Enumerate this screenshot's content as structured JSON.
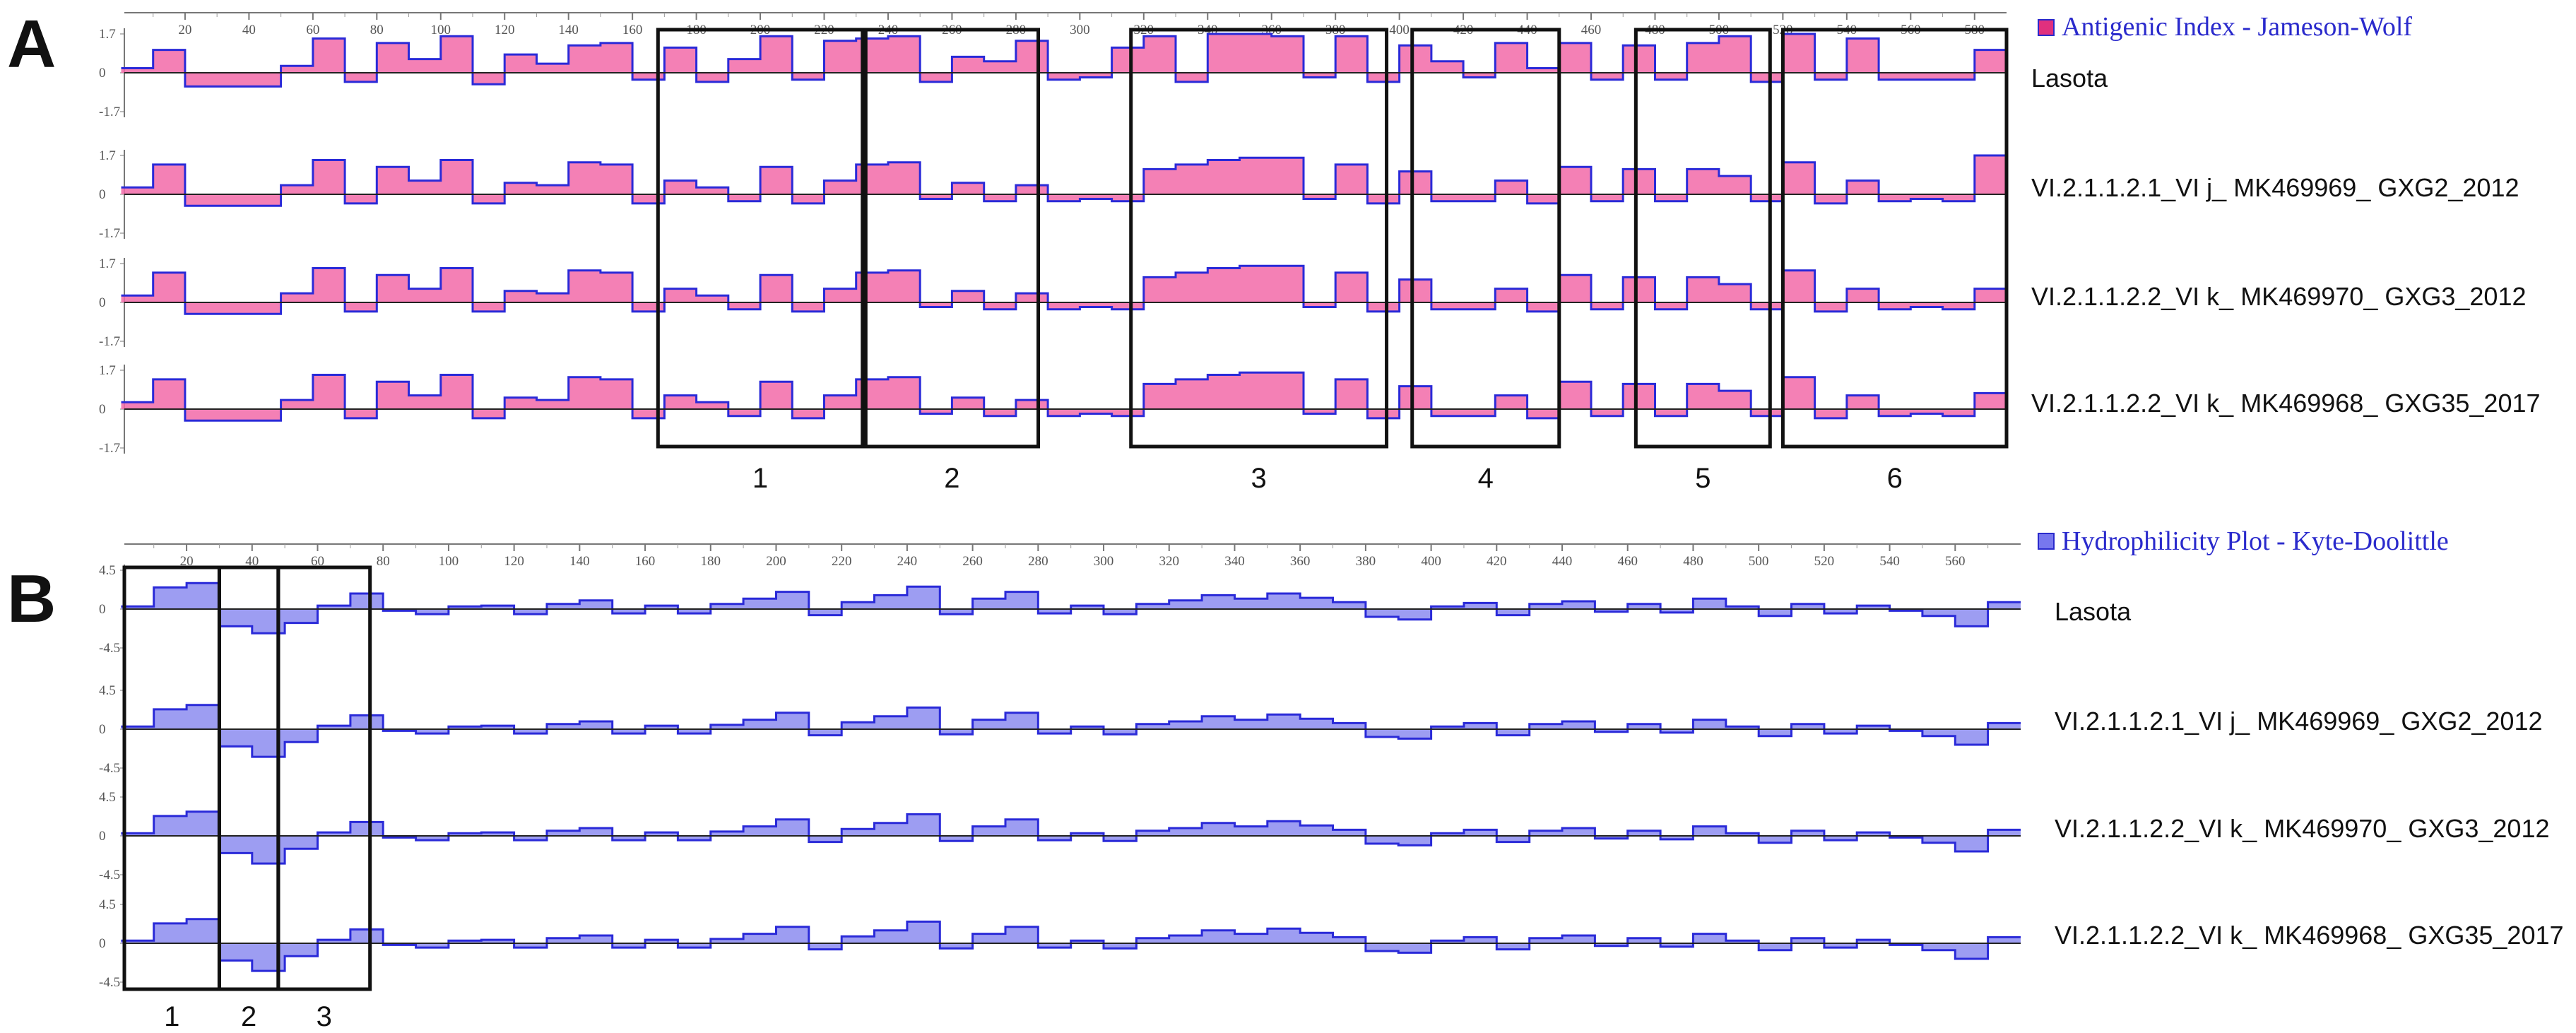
{
  "figure": {
    "panels": [
      {
        "letter": "A",
        "legend": "Antigenic Index - Jameson-Wolf",
        "color": "#e0307e",
        "fill": "#f26aa8",
        "edge": "#2a2ad8",
        "yticks": [
          "1.7",
          "0",
          "-1.7"
        ],
        "box_labels": [
          "1",
          "2",
          "3",
          "4",
          "5",
          "6"
        ]
      },
      {
        "letter": "B",
        "legend": "Hydrophilicity Plot - Kyte-Doolittle",
        "color": "#5a5ae0",
        "fill": "#8c8cf0",
        "edge": "#2a2ad8",
        "yticks": [
          "4.5",
          "0",
          "-4.5"
        ],
        "box_labels": [
          "1",
          "2",
          "3"
        ]
      }
    ],
    "sequences": [
      "Lasota",
      "VI.2.1.1.2.1_VI j_ MK469969_ GXG2_2012",
      "VI.2.1.1.2.2_VI k_ MK469970_ GXG3_2012",
      "VI.2.1.1.2.2_VI k_ MK469968_ GXG35_2017"
    ],
    "xticks": [
      "20",
      "40",
      "60",
      "80",
      "100",
      "120",
      "140",
      "160",
      "180",
      "200",
      "220",
      "240",
      "260",
      "280",
      "300",
      "320",
      "340",
      "360",
      "380",
      "400",
      "420",
      "440",
      "460",
      "480",
      "500",
      "520",
      "540",
      "560"
    ]
  },
  "chart_data": [
    {
      "type": "area",
      "title": "Antigenic Index - Jameson-Wolf",
      "x_range": [
        1,
        590
      ],
      "ylim": [
        -1.7,
        1.7
      ],
      "xticks": [
        20,
        40,
        60,
        80,
        100,
        120,
        140,
        160,
        180,
        200,
        220,
        240,
        260,
        280,
        300,
        320,
        340,
        360,
        380,
        400,
        420,
        440,
        460,
        480,
        500,
        520,
        540,
        560,
        580
      ],
      "x": [
        5,
        15,
        25,
        35,
        45,
        55,
        65,
        75,
        85,
        95,
        105,
        115,
        125,
        135,
        145,
        155,
        165,
        175,
        185,
        195,
        205,
        215,
        225,
        235,
        245,
        255,
        265,
        275,
        285,
        295,
        305,
        315,
        325,
        335,
        345,
        355,
        365,
        375,
        385,
        395,
        405,
        415,
        425,
        435,
        445,
        455,
        465,
        475,
        485,
        495,
        505,
        515,
        525,
        535,
        545,
        555,
        565,
        575,
        585
      ],
      "series": [
        {
          "name": "Lasota",
          "values": [
            0.2,
            1.0,
            -0.6,
            -0.6,
            -0.6,
            0.3,
            1.5,
            -0.4,
            1.3,
            0.6,
            1.6,
            -0.5,
            0.8,
            0.4,
            1.2,
            1.3,
            -0.3,
            1.1,
            -0.4,
            0.6,
            1.6,
            -0.3,
            1.4,
            1.5,
            1.6,
            -0.4,
            0.7,
            0.5,
            1.4,
            -0.3,
            -0.2,
            1.1,
            1.6,
            -0.4,
            1.7,
            1.7,
            1.6,
            -0.2,
            1.6,
            -0.4,
            1.2,
            0.5,
            -0.2,
            1.3,
            0.2,
            1.3,
            -0.3,
            1.2,
            -0.3,
            1.3,
            1.6,
            -0.4,
            1.7,
            -0.3,
            1.5,
            -0.3,
            -0.3,
            -0.3,
            1.0
          ]
        },
        {
          "name": "VI.2.1.1.2.1_VI j_ MK469969_ GXG2_2012",
          "values": [
            0.3,
            1.3,
            -0.5,
            -0.5,
            -0.5,
            0.4,
            1.5,
            -0.4,
            1.2,
            0.6,
            1.5,
            -0.4,
            0.5,
            0.4,
            1.4,
            1.3,
            -0.4,
            0.6,
            0.3,
            -0.3,
            1.2,
            -0.4,
            0.6,
            1.3,
            1.4,
            -0.2,
            0.5,
            -0.3,
            0.4,
            -0.3,
            -0.2,
            -0.3,
            1.1,
            1.3,
            1.5,
            1.6,
            1.6,
            -0.2,
            1.3,
            -0.4,
            1.0,
            -0.3,
            -0.3,
            0.6,
            -0.4,
            1.2,
            -0.3,
            1.1,
            -0.3,
            1.1,
            0.8,
            -0.3,
            1.4,
            -0.4,
            0.6,
            -0.3,
            -0.2,
            -0.3,
            1.7
          ]
        },
        {
          "name": "VI.2.1.1.2.2_VI k_ MK469970_ GXG3_2012",
          "values": [
            0.3,
            1.3,
            -0.5,
            -0.5,
            -0.5,
            0.4,
            1.5,
            -0.4,
            1.2,
            0.6,
            1.5,
            -0.4,
            0.5,
            0.4,
            1.4,
            1.3,
            -0.4,
            0.6,
            0.3,
            -0.3,
            1.2,
            -0.4,
            0.6,
            1.3,
            1.4,
            -0.2,
            0.5,
            -0.3,
            0.4,
            -0.3,
            -0.2,
            -0.3,
            1.1,
            1.3,
            1.5,
            1.6,
            1.6,
            -0.2,
            1.3,
            -0.4,
            1.0,
            -0.3,
            -0.3,
            0.6,
            -0.4,
            1.2,
            -0.3,
            1.1,
            -0.3,
            1.1,
            0.8,
            -0.3,
            1.4,
            -0.4,
            0.6,
            -0.3,
            -0.2,
            -0.3,
            0.6
          ]
        },
        {
          "name": "VI.2.1.1.2.2_VI k_ MK469968_ GXG35_2017",
          "values": [
            0.3,
            1.3,
            -0.5,
            -0.5,
            -0.5,
            0.4,
            1.5,
            -0.4,
            1.2,
            0.6,
            1.5,
            -0.4,
            0.5,
            0.4,
            1.4,
            1.3,
            -0.4,
            0.6,
            0.3,
            -0.3,
            1.2,
            -0.4,
            0.6,
            1.3,
            1.4,
            -0.2,
            0.5,
            -0.3,
            0.4,
            -0.3,
            -0.2,
            -0.3,
            1.1,
            1.3,
            1.5,
            1.6,
            1.6,
            -0.2,
            1.3,
            -0.4,
            1.0,
            -0.3,
            -0.3,
            0.6,
            -0.4,
            1.2,
            -0.3,
            1.1,
            -0.3,
            1.1,
            0.8,
            -0.3,
            1.4,
            -0.4,
            0.6,
            -0.3,
            -0.2,
            -0.3,
            0.7
          ]
        }
      ],
      "boxes": [
        {
          "label": "1",
          "x_range": [
            168,
            232
          ]
        },
        {
          "label": "2",
          "x_range": [
            233,
            287
          ]
        },
        {
          "label": "3",
          "x_range": [
            316,
            396
          ]
        },
        {
          "label": "4",
          "x_range": [
            404,
            450
          ]
        },
        {
          "label": "5",
          "x_range": [
            474,
            516
          ]
        },
        {
          "label": "6",
          "x_range": [
            520,
            590
          ]
        }
      ],
      "legend": "top-right"
    },
    {
      "type": "area",
      "title": "Hydrophilicity Plot - Kyte-Doolittle",
      "x_range": [
        1,
        580
      ],
      "ylim": [
        -4.5,
        4.5
      ],
      "xticks": [
        20,
        40,
        60,
        80,
        100,
        120,
        140,
        160,
        180,
        200,
        220,
        240,
        260,
        280,
        300,
        320,
        340,
        360,
        380,
        400,
        420,
        440,
        460,
        480,
        500,
        520,
        540,
        560
      ],
      "x": [
        5,
        15,
        25,
        35,
        45,
        55,
        65,
        75,
        85,
        95,
        105,
        115,
        125,
        135,
        145,
        155,
        165,
        175,
        185,
        195,
        205,
        215,
        225,
        235,
        245,
        255,
        265,
        275,
        285,
        295,
        305,
        315,
        325,
        335,
        345,
        355,
        365,
        375,
        385,
        395,
        405,
        415,
        425,
        435,
        445,
        455,
        465,
        475,
        485,
        495,
        505,
        515,
        525,
        535,
        545,
        555,
        565,
        575
      ],
      "series": [
        {
          "name": "Lasota",
          "values": [
            0.3,
            2.5,
            3.0,
            -2.0,
            -2.8,
            -1.6,
            0.4,
            1.8,
            -0.2,
            -0.6,
            0.3,
            0.4,
            -0.6,
            0.6,
            1.0,
            -0.5,
            0.4,
            -0.5,
            0.6,
            1.2,
            2.0,
            -0.7,
            0.8,
            1.6,
            2.6,
            -0.6,
            1.2,
            2.0,
            -0.5,
            0.4,
            -0.6,
            0.6,
            1.0,
            1.6,
            1.2,
            1.8,
            1.3,
            0.8,
            -0.9,
            -1.2,
            0.3,
            0.7,
            -0.7,
            0.6,
            0.9,
            -0.3,
            0.6,
            -0.4,
            1.2,
            0.3,
            -0.8,
            0.6,
            -0.5,
            0.4,
            -0.2,
            -0.8,
            -2.0,
            0.8
          ]
        },
        {
          "name": "VI.2.1.1.2.1_VI j_ MK469969_ GXG2_2012",
          "values": [
            0.3,
            2.3,
            2.8,
            -2.0,
            -3.2,
            -1.5,
            0.4,
            1.6,
            -0.2,
            -0.5,
            0.3,
            0.4,
            -0.5,
            0.6,
            0.9,
            -0.5,
            0.4,
            -0.5,
            0.5,
            1.1,
            1.9,
            -0.7,
            0.8,
            1.5,
            2.5,
            -0.6,
            1.1,
            1.9,
            -0.5,
            0.3,
            -0.6,
            0.6,
            0.9,
            1.5,
            1.1,
            1.7,
            1.2,
            0.7,
            -0.9,
            -1.1,
            0.3,
            0.7,
            -0.7,
            0.6,
            0.9,
            -0.3,
            0.6,
            -0.4,
            1.1,
            0.3,
            -0.8,
            0.6,
            -0.5,
            0.4,
            -0.2,
            -0.8,
            -1.8,
            0.7
          ]
        },
        {
          "name": "VI.2.1.1.2.2_VI k_ MK469970_ GXG3_2012",
          "values": [
            0.3,
            2.3,
            2.8,
            -2.0,
            -3.2,
            -1.5,
            0.4,
            1.6,
            -0.2,
            -0.5,
            0.3,
            0.4,
            -0.5,
            0.6,
            0.9,
            -0.5,
            0.4,
            -0.5,
            0.5,
            1.1,
            1.9,
            -0.7,
            0.8,
            1.5,
            2.5,
            -0.6,
            1.1,
            1.9,
            -0.5,
            0.3,
            -0.6,
            0.6,
            0.9,
            1.5,
            1.1,
            1.7,
            1.2,
            0.7,
            -0.9,
            -1.1,
            0.3,
            0.7,
            -0.7,
            0.6,
            0.9,
            -0.3,
            0.6,
            -0.4,
            1.1,
            0.3,
            -0.8,
            0.6,
            -0.5,
            0.4,
            -0.2,
            -0.8,
            -1.8,
            0.7
          ]
        },
        {
          "name": "VI.2.1.1.2.2_VI k_ MK469968_ GXG35_2017",
          "values": [
            0.3,
            2.3,
            2.8,
            -2.0,
            -3.2,
            -1.5,
            0.4,
            1.6,
            -0.2,
            -0.5,
            0.3,
            0.4,
            -0.5,
            0.6,
            0.9,
            -0.5,
            0.4,
            -0.5,
            0.5,
            1.1,
            1.9,
            -0.7,
            0.8,
            1.5,
            2.5,
            -0.6,
            1.1,
            1.9,
            -0.5,
            0.3,
            -0.6,
            0.6,
            0.9,
            1.5,
            1.1,
            1.7,
            1.2,
            0.7,
            -0.9,
            -1.1,
            0.3,
            0.7,
            -0.7,
            0.6,
            0.9,
            -0.3,
            0.6,
            -0.4,
            1.1,
            0.3,
            -0.8,
            0.6,
            -0.5,
            0.4,
            -0.2,
            -0.8,
            -1.8,
            0.7
          ]
        }
      ],
      "boxes": [
        {
          "label": "1",
          "x_range": [
            1,
            30
          ]
        },
        {
          "label": "2",
          "x_range": [
            30,
            48
          ]
        },
        {
          "label": "3",
          "x_range": [
            48,
            76
          ]
        }
      ],
      "legend": "top-right"
    }
  ]
}
